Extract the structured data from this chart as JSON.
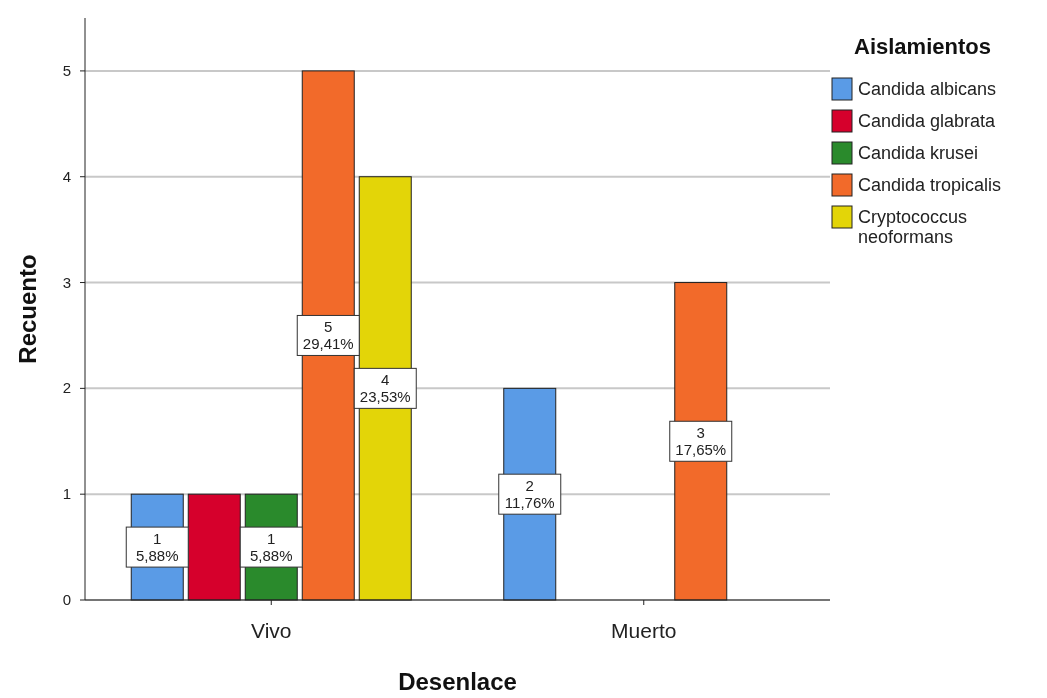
{
  "chart_data": {
    "type": "bar",
    "xlabel": "Desenlace",
    "ylabel": "Recuento",
    "legend_title": "Aislamientos",
    "categories": [
      "Vivo",
      "Muerto"
    ],
    "series": [
      {
        "name": "Candida albicans",
        "color": "#5a9be6",
        "values": [
          1,
          2
        ],
        "value_labels": [
          "1\n5,88%",
          "2\n11,76%"
        ]
      },
      {
        "name": "Candida glabrata",
        "color": "#d6002c",
        "values": [
          1,
          null
        ],
        "value_labels": [
          null,
          null
        ]
      },
      {
        "name": "Candida krusei",
        "color": "#2a8a2c",
        "values": [
          1,
          null
        ],
        "value_labels": [
          "1\n5,88%",
          null
        ]
      },
      {
        "name": "Candida tropicalis",
        "color": "#f26a2a",
        "values": [
          5,
          3
        ],
        "value_labels": [
          "5\n29,41%",
          "3\n17,65%"
        ]
      },
      {
        "name": "Cryptococcus neoformans",
        "color": "#e3d508",
        "values": [
          4,
          null
        ],
        "value_labels": [
          "4\n23,53%",
          null
        ]
      }
    ],
    "ylim": [
      0,
      5.5
    ],
    "yticks": [
      0,
      1,
      2,
      3,
      4,
      5
    ],
    "grid": "y",
    "legend": "right"
  }
}
